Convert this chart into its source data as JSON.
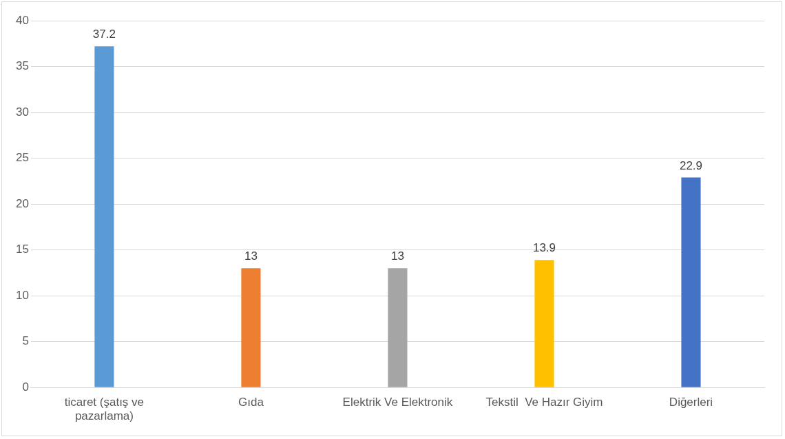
{
  "chart_data": {
    "type": "bar",
    "categories": [
      "ticaret (şatış ve pazarlama)",
      "Gıda",
      "Elektrik Ve Elektronik",
      "Tekstil  Ve Hazır Giyim",
      "Diğerleri"
    ],
    "values": [
      37.2,
      13,
      13,
      13.9,
      22.9
    ],
    "colors": [
      "#5b9bd5",
      "#ed7d31",
      "#a5a5a5",
      "#ffc000",
      "#4472c4"
    ],
    "ylim": [
      0,
      40
    ],
    "yticks": [
      0,
      5,
      10,
      15,
      20,
      25,
      30,
      35,
      40
    ],
    "grid": "y",
    "data_labels": true,
    "legend": false
  }
}
